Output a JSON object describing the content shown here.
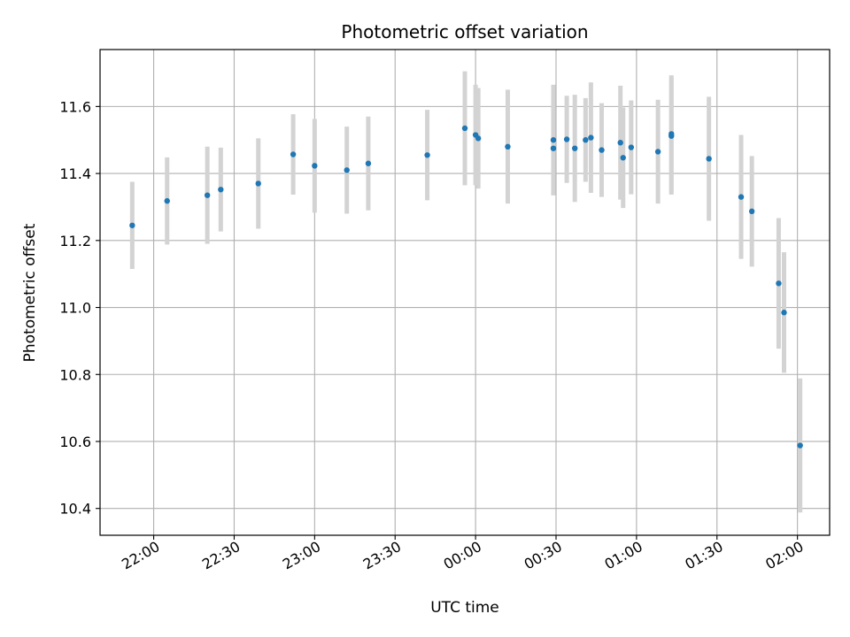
{
  "chart_data": {
    "type": "scatter",
    "title": "Photometric offset variation",
    "xlabel": "UTC time",
    "ylabel": "Photometric offset",
    "xlim": [
      "21:40",
      "02:12"
    ],
    "ylim": [
      10.32,
      11.77
    ],
    "x_ticks": [
      "22:00",
      "22:30",
      "23:00",
      "23:30",
      "00:00",
      "00:30",
      "01:00",
      "01:30",
      "02:00"
    ],
    "y_ticks": [
      "10.4",
      "10.6",
      "10.8",
      "11.0",
      "11.2",
      "11.4",
      "11.6"
    ],
    "grid": true,
    "marker_color": "#1f77b4",
    "errorbar_color": "#d3d3d3",
    "points": [
      {
        "x": "21:52",
        "y": 11.245,
        "yerr": 0.13
      },
      {
        "x": "22:05",
        "y": 11.318,
        "yerr": 0.13
      },
      {
        "x": "22:20",
        "y": 11.335,
        "yerr": 0.145
      },
      {
        "x": "22:25",
        "y": 11.352,
        "yerr": 0.125
      },
      {
        "x": "22:39",
        "y": 11.37,
        "yerr": 0.135
      },
      {
        "x": "22:52",
        "y": 11.457,
        "yerr": 0.12
      },
      {
        "x": "23:00",
        "y": 11.423,
        "yerr": 0.14
      },
      {
        "x": "23:12",
        "y": 11.41,
        "yerr": 0.13
      },
      {
        "x": "23:20",
        "y": 11.43,
        "yerr": 0.14
      },
      {
        "x": "23:42",
        "y": 11.455,
        "yerr": 0.135
      },
      {
        "x": "23:56",
        "y": 11.535,
        "yerr": 0.17
      },
      {
        "x": "00:00",
        "y": 11.515,
        "yerr": 0.15
      },
      {
        "x": "00:01",
        "y": 11.505,
        "yerr": 0.15
      },
      {
        "x": "00:12",
        "y": 11.48,
        "yerr": 0.17
      },
      {
        "x": "00:29",
        "y": 11.5,
        "yerr": 0.165
      },
      {
        "x": "00:29",
        "y": 11.475,
        "yerr": 0.14
      },
      {
        "x": "00:34",
        "y": 11.502,
        "yerr": 0.13
      },
      {
        "x": "00:37",
        "y": 11.475,
        "yerr": 0.16
      },
      {
        "x": "00:41",
        "y": 11.5,
        "yerr": 0.125
      },
      {
        "x": "00:43",
        "y": 11.507,
        "yerr": 0.165
      },
      {
        "x": "00:47",
        "y": 11.47,
        "yerr": 0.14
      },
      {
        "x": "00:54",
        "y": 11.492,
        "yerr": 0.17
      },
      {
        "x": "00:55",
        "y": 11.447,
        "yerr": 0.15
      },
      {
        "x": "00:58",
        "y": 11.478,
        "yerr": 0.14
      },
      {
        "x": "01:08",
        "y": 11.465,
        "yerr": 0.155
      },
      {
        "x": "01:13",
        "y": 11.518,
        "yerr": 0.175
      },
      {
        "x": "01:13",
        "y": 11.512,
        "yerr": 0.175
      },
      {
        "x": "01:27",
        "y": 11.444,
        "yerr": 0.185
      },
      {
        "x": "01:39",
        "y": 11.33,
        "yerr": 0.185
      },
      {
        "x": "01:43",
        "y": 11.287,
        "yerr": 0.165
      },
      {
        "x": "01:53",
        "y": 11.072,
        "yerr": 0.195
      },
      {
        "x": "01:55",
        "y": 10.985,
        "yerr": 0.18
      },
      {
        "x": "02:01",
        "y": 10.588,
        "yerr": 0.2
      }
    ]
  }
}
